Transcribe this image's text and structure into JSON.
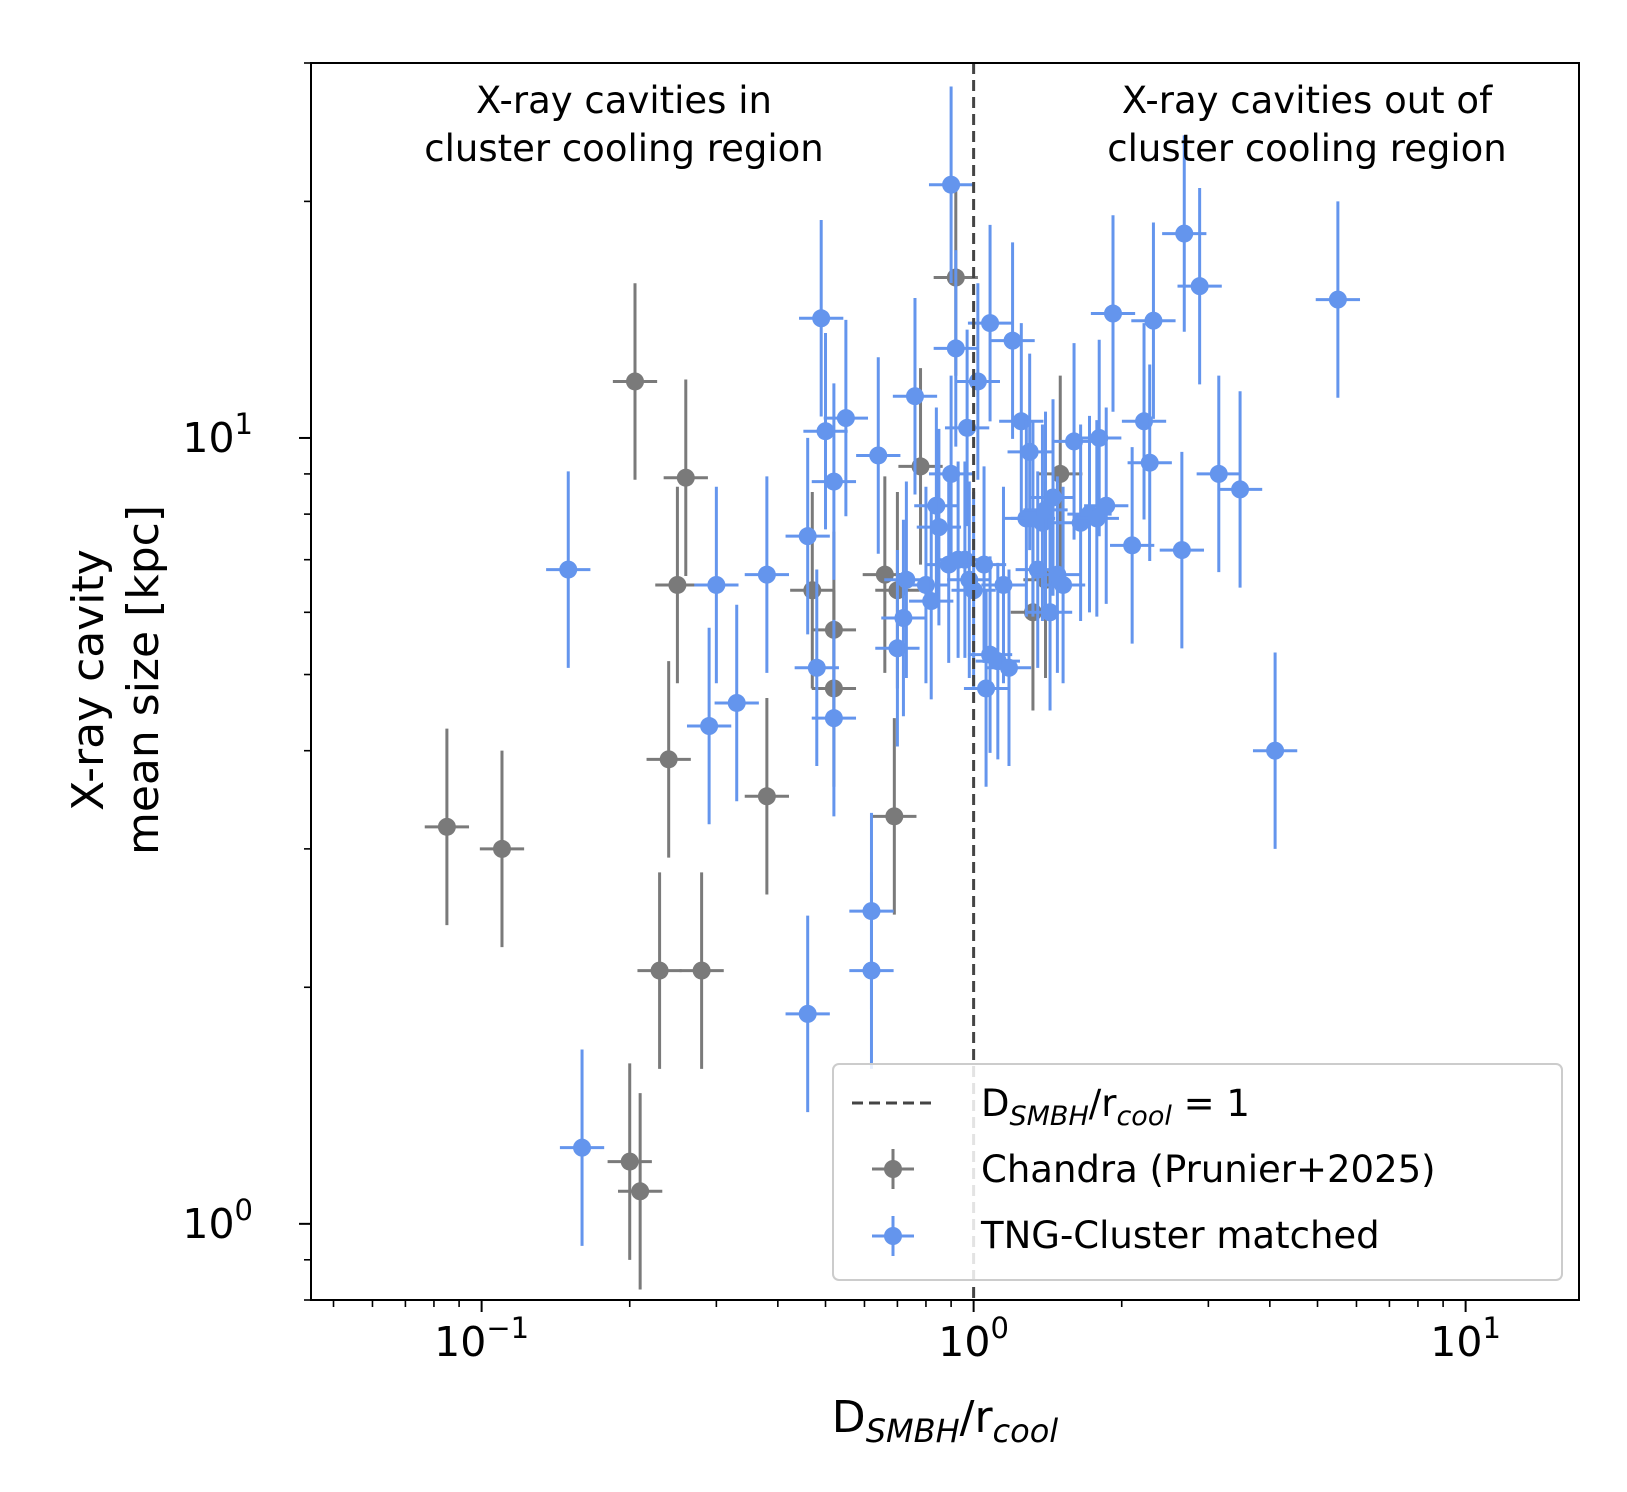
{
  "chart_data": {
    "type": "scatter",
    "xscale": "log",
    "yscale": "log",
    "xlim": [
      0.045,
      17
    ],
    "ylim": [
      0.8,
      30
    ],
    "xlabel": {
      "main": "D",
      "sub1": "SMBH",
      "mid": "/r",
      "sub2": "cool"
    },
    "ylabel_line1": "X-ray cavity",
    "ylabel_line2": "mean size [kpc]",
    "xticks": [
      {
        "value": 0.1,
        "base": "10",
        "exp": "−1"
      },
      {
        "value": 1,
        "base": "10",
        "exp": "0"
      },
      {
        "value": 10,
        "base": "10",
        "exp": "1"
      }
    ],
    "yticks": [
      {
        "value": 1,
        "base": "10",
        "exp": "0"
      },
      {
        "value": 10,
        "base": "10",
        "exp": "1"
      }
    ],
    "annotations": {
      "left_line1": "X-ray cavities in",
      "left_line2": "cluster cooling region",
      "right_line1": "X-ray cavities out of",
      "right_line2": "cluster cooling region"
    },
    "reference_line": {
      "x": 1,
      "style": "dashed",
      "color": "#444444"
    },
    "legend": {
      "position": "lower-right",
      "ref": {
        "main": "D",
        "sub1": "SMBH",
        "mid": "/r",
        "sub2": "cool",
        "tail": " = 1"
      },
      "chandra": "Chandra (Prunier+2025)",
      "tng": "TNG-Cluster matched"
    },
    "series": [
      {
        "name": "Chandra (Prunier+2025)",
        "color": "#7a7a7a",
        "points": [
          [
            0.085,
            3.2
          ],
          [
            0.11,
            3.0
          ],
          [
            0.2,
            1.2
          ],
          [
            0.21,
            1.1
          ],
          [
            0.205,
            11.8
          ],
          [
            0.26,
            8.9
          ],
          [
            0.25,
            6.5
          ],
          [
            0.24,
            3.9
          ],
          [
            0.23,
            2.1
          ],
          [
            0.28,
            2.1
          ],
          [
            0.38,
            3.5
          ],
          [
            0.47,
            6.4
          ],
          [
            0.52,
            5.7
          ],
          [
            0.52,
            4.8
          ],
          [
            0.66,
            6.7
          ],
          [
            0.7,
            6.4
          ],
          [
            0.69,
            3.3
          ],
          [
            0.78,
            9.2
          ],
          [
            0.92,
            16.0
          ],
          [
            1.32,
            6.0
          ],
          [
            1.4,
            6.6
          ],
          [
            1.5,
            9.0
          ]
        ]
      },
      {
        "name": "TNG-Cluster matched",
        "color": "#6495ed",
        "points": [
          [
            0.15,
            6.8
          ],
          [
            0.16,
            1.25
          ],
          [
            0.3,
            6.5
          ],
          [
            0.29,
            4.3
          ],
          [
            0.33,
            4.6
          ],
          [
            0.38,
            6.7
          ],
          [
            0.46,
            7.5
          ],
          [
            0.46,
            1.85
          ],
          [
            0.48,
            5.1
          ],
          [
            0.49,
            14.2
          ],
          [
            0.5,
            10.2
          ],
          [
            0.52,
            8.8
          ],
          [
            0.52,
            4.4
          ],
          [
            0.55,
            10.6
          ],
          [
            0.62,
            2.5
          ],
          [
            0.62,
            2.1
          ],
          [
            0.64,
            9.5
          ],
          [
            0.7,
            5.4
          ],
          [
            0.72,
            5.9
          ],
          [
            0.73,
            6.6
          ],
          [
            0.76,
            11.3
          ],
          [
            0.8,
            6.5
          ],
          [
            0.82,
            6.2
          ],
          [
            0.84,
            8.2
          ],
          [
            0.85,
            7.7
          ],
          [
            0.89,
            6.9
          ],
          [
            0.9,
            21.0
          ],
          [
            0.9,
            9.0
          ],
          [
            0.92,
            13.0
          ],
          [
            0.93,
            7.0
          ],
          [
            0.96,
            7.0
          ],
          [
            0.97,
            10.3
          ],
          [
            0.98,
            6.6
          ],
          [
            1.0,
            6.4
          ],
          [
            1.02,
            11.8
          ],
          [
            1.05,
            6.9
          ],
          [
            1.06,
            4.8
          ],
          [
            1.08,
            14.0
          ],
          [
            1.08,
            5.3
          ],
          [
            1.12,
            5.2
          ],
          [
            1.15,
            6.5
          ],
          [
            1.18,
            5.1
          ],
          [
            1.2,
            13.3
          ],
          [
            1.25,
            10.5
          ],
          [
            1.28,
            7.9
          ],
          [
            1.3,
            9.6
          ],
          [
            1.32,
            7.9
          ],
          [
            1.35,
            6.8
          ],
          [
            1.38,
            7.8
          ],
          [
            1.4,
            8.1
          ],
          [
            1.43,
            6.0
          ],
          [
            1.45,
            8.4
          ],
          [
            1.48,
            6.7
          ],
          [
            1.52,
            6.5
          ],
          [
            1.6,
            9.9
          ],
          [
            1.65,
            7.8
          ],
          [
            1.72,
            8.0
          ],
          [
            1.78,
            7.9
          ],
          [
            1.8,
            10.0
          ],
          [
            1.86,
            8.2
          ],
          [
            1.92,
            14.4
          ],
          [
            2.1,
            7.3
          ],
          [
            2.22,
            10.5
          ],
          [
            2.28,
            9.3
          ],
          [
            2.32,
            14.1
          ],
          [
            2.65,
            7.2
          ],
          [
            2.68,
            18.2
          ],
          [
            2.88,
            15.6
          ],
          [
            3.15,
            9.0
          ],
          [
            3.48,
            8.6
          ],
          [
            4.1,
            4.0
          ],
          [
            5.5,
            15.0
          ]
        ]
      }
    ]
  }
}
